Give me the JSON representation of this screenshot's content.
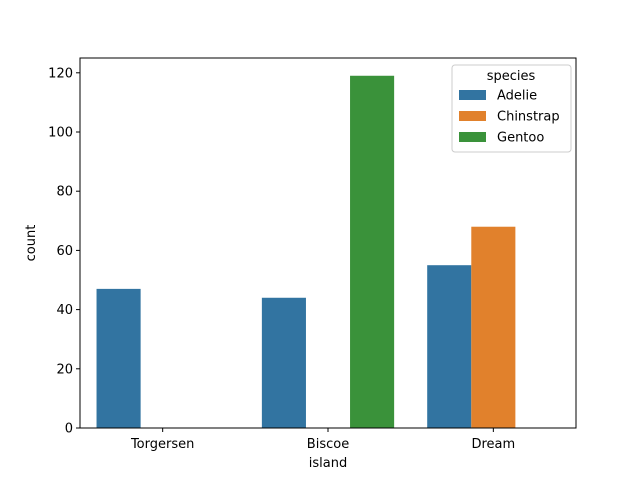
{
  "chart_data": {
    "type": "bar",
    "title": "",
    "xlabel": "island",
    "ylabel": "count",
    "categories": [
      "Torgersen",
      "Biscoe",
      "Dream"
    ],
    "ylim": [
      0,
      125
    ],
    "yticks": [
      0,
      20,
      40,
      60,
      80,
      100,
      120
    ],
    "grid": false,
    "legend": {
      "title": "species",
      "placement": "top-right"
    },
    "series": [
      {
        "name": "Adelie",
        "color": "#3274a1",
        "values": [
          47,
          44,
          55
        ]
      },
      {
        "name": "Chinstrap",
        "color": "#e1812c",
        "values": [
          0,
          0,
          68
        ]
      },
      {
        "name": "Gentoo",
        "color": "#3a923a",
        "values": [
          0,
          119,
          0
        ]
      }
    ]
  }
}
